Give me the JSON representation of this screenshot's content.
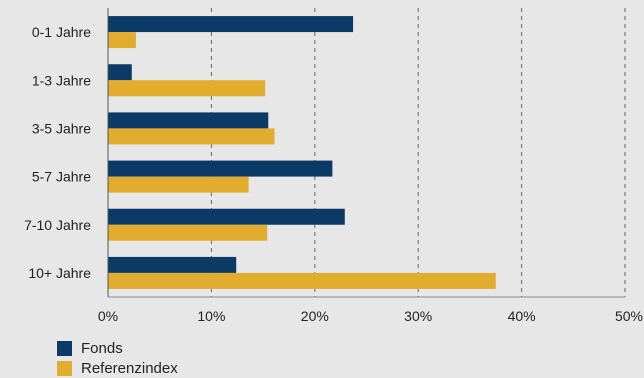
{
  "chart_data": {
    "type": "bar",
    "orientation": "horizontal",
    "categories": [
      "0-1 Jahre",
      "1-3 Jahre",
      "3-5 Jahre",
      "5-7 Jahre",
      "7-10 Jahre",
      "10+ Jahre"
    ],
    "series": [
      {
        "name": "Fonds",
        "color": "#0b3a66",
        "values": [
          23.7,
          2.3,
          15.5,
          21.7,
          22.9,
          12.4
        ]
      },
      {
        "name": "Referenzindex",
        "color": "#e2ac2e",
        "values": [
          2.7,
          15.2,
          16.1,
          13.6,
          15.4,
          37.5
        ]
      }
    ],
    "xlim": [
      0,
      50
    ],
    "xticks": [
      "0%",
      "10%",
      "20%",
      "30%",
      "40%",
      "50%"
    ],
    "grid": "vertical dashed",
    "legend_position": "bottom-left",
    "title": "",
    "xlabel": "",
    "ylabel": ""
  }
}
